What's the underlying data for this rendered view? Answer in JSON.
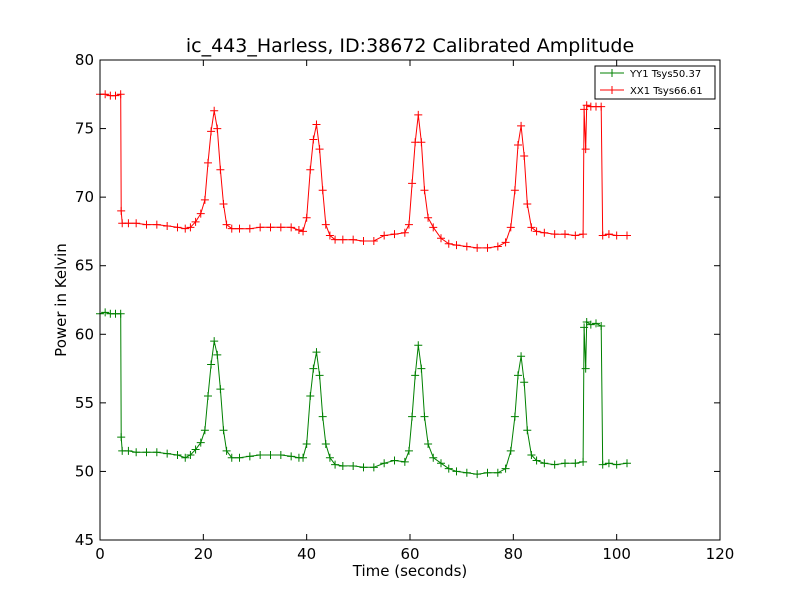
{
  "chart_data": {
    "type": "line",
    "title": "ic_443_Harless, ID:38672 Calibrated Amplitude",
    "xlabel": "Time (seconds)",
    "ylabel": "Power in Kelvin",
    "xlim": [
      0,
      120
    ],
    "ylim": [
      45,
      80
    ],
    "xticks": [
      0,
      20,
      40,
      60,
      80,
      100,
      120
    ],
    "yticks": [
      45,
      50,
      55,
      60,
      65,
      70,
      75,
      80
    ],
    "grid": false,
    "legend_position": "top-right",
    "series": [
      {
        "name": "YY1 Tsys50.37",
        "color": "#008000",
        "marker": "+",
        "points": [
          [
            0.0,
            61.5
          ],
          [
            1.0,
            61.6
          ],
          [
            2.0,
            61.5
          ],
          [
            3.0,
            61.5
          ],
          [
            4.0,
            61.5
          ],
          [
            4.1,
            52.5
          ],
          [
            4.3,
            51.5
          ],
          [
            5.5,
            51.5
          ],
          [
            7.0,
            51.4
          ],
          [
            9.0,
            51.4
          ],
          [
            11.0,
            51.4
          ],
          [
            13.0,
            51.3
          ],
          [
            15.0,
            51.2
          ],
          [
            16.5,
            51.0
          ],
          [
            17.5,
            51.2
          ],
          [
            18.5,
            51.6
          ],
          [
            19.5,
            52.1
          ],
          [
            20.3,
            53.0
          ],
          [
            20.9,
            55.5
          ],
          [
            21.5,
            57.8
          ],
          [
            22.1,
            59.5
          ],
          [
            22.7,
            58.5
          ],
          [
            23.3,
            56.0
          ],
          [
            23.9,
            53.0
          ],
          [
            24.5,
            51.5
          ],
          [
            25.5,
            51.0
          ],
          [
            27.0,
            51.0
          ],
          [
            29.0,
            51.1
          ],
          [
            31.0,
            51.2
          ],
          [
            33.0,
            51.2
          ],
          [
            35.0,
            51.2
          ],
          [
            37.0,
            51.1
          ],
          [
            38.5,
            51.0
          ],
          [
            39.3,
            51.0
          ],
          [
            40.0,
            52.0
          ],
          [
            40.7,
            55.5
          ],
          [
            41.3,
            57.5
          ],
          [
            41.9,
            58.7
          ],
          [
            42.5,
            57.0
          ],
          [
            43.1,
            54.0
          ],
          [
            43.7,
            52.0
          ],
          [
            44.5,
            51.0
          ],
          [
            45.5,
            50.5
          ],
          [
            47.0,
            50.4
          ],
          [
            49.0,
            50.4
          ],
          [
            51.0,
            50.3
          ],
          [
            53.0,
            50.3
          ],
          [
            55.0,
            50.6
          ],
          [
            57.0,
            50.8
          ],
          [
            59.0,
            50.7
          ],
          [
            59.8,
            51.5
          ],
          [
            60.4,
            54.0
          ],
          [
            61.0,
            57.0
          ],
          [
            61.6,
            59.2
          ],
          [
            62.2,
            57.5
          ],
          [
            62.8,
            54.0
          ],
          [
            63.5,
            52.0
          ],
          [
            64.5,
            51.0
          ],
          [
            66.0,
            50.6
          ],
          [
            67.5,
            50.2
          ],
          [
            69.0,
            50.0
          ],
          [
            71.0,
            49.9
          ],
          [
            73.0,
            49.8
          ],
          [
            75.0,
            49.9
          ],
          [
            77.0,
            49.9
          ],
          [
            78.5,
            50.2
          ],
          [
            79.5,
            51.5
          ],
          [
            80.3,
            54.0
          ],
          [
            80.9,
            57.0
          ],
          [
            81.5,
            58.4
          ],
          [
            82.1,
            56.5
          ],
          [
            82.7,
            53.0
          ],
          [
            83.5,
            51.2
          ],
          [
            84.5,
            50.8
          ],
          [
            86.0,
            50.6
          ],
          [
            88.0,
            50.5
          ],
          [
            90.0,
            50.6
          ],
          [
            92.0,
            50.6
          ],
          [
            93.5,
            50.7
          ],
          [
            93.7,
            60.5
          ],
          [
            94.0,
            57.5
          ],
          [
            94.2,
            60.9
          ],
          [
            95.0,
            60.7
          ],
          [
            96.0,
            60.8
          ],
          [
            97.0,
            60.6
          ],
          [
            97.3,
            50.5
          ],
          [
            98.5,
            50.6
          ],
          [
            100.0,
            50.5
          ],
          [
            102.0,
            50.6
          ]
        ]
      },
      {
        "name": "XX1 Tsys66.61",
        "color": "#ff0000",
        "marker": "+",
        "points": [
          [
            0.0,
            77.5
          ],
          [
            1.0,
            77.5
          ],
          [
            2.0,
            77.4
          ],
          [
            3.0,
            77.4
          ],
          [
            4.0,
            77.5
          ],
          [
            4.1,
            69.0
          ],
          [
            4.3,
            68.1
          ],
          [
            5.5,
            68.1
          ],
          [
            7.0,
            68.1
          ],
          [
            9.0,
            68.0
          ],
          [
            11.0,
            68.0
          ],
          [
            13.0,
            67.9
          ],
          [
            15.0,
            67.8
          ],
          [
            16.5,
            67.7
          ],
          [
            17.5,
            67.8
          ],
          [
            18.5,
            68.2
          ],
          [
            19.5,
            68.8
          ],
          [
            20.3,
            69.8
          ],
          [
            20.9,
            72.5
          ],
          [
            21.5,
            74.8
          ],
          [
            22.1,
            76.3
          ],
          [
            22.7,
            75.0
          ],
          [
            23.3,
            72.0
          ],
          [
            23.9,
            69.5
          ],
          [
            24.5,
            68.0
          ],
          [
            25.5,
            67.7
          ],
          [
            27.0,
            67.7
          ],
          [
            29.0,
            67.7
          ],
          [
            31.0,
            67.8
          ],
          [
            33.0,
            67.8
          ],
          [
            35.0,
            67.8
          ],
          [
            37.0,
            67.8
          ],
          [
            38.5,
            67.6
          ],
          [
            39.3,
            67.5
          ],
          [
            40.0,
            68.5
          ],
          [
            40.7,
            72.0
          ],
          [
            41.3,
            74.2
          ],
          [
            41.9,
            75.3
          ],
          [
            42.5,
            73.5
          ],
          [
            43.1,
            70.5
          ],
          [
            43.7,
            68.0
          ],
          [
            44.5,
            67.2
          ],
          [
            45.5,
            66.9
          ],
          [
            47.0,
            66.9
          ],
          [
            49.0,
            66.9
          ],
          [
            51.0,
            66.8
          ],
          [
            53.0,
            66.8
          ],
          [
            55.0,
            67.2
          ],
          [
            57.0,
            67.3
          ],
          [
            59.0,
            67.4
          ],
          [
            59.8,
            68.0
          ],
          [
            60.4,
            71.0
          ],
          [
            61.0,
            74.0
          ],
          [
            61.6,
            76.0
          ],
          [
            62.2,
            74.0
          ],
          [
            62.8,
            70.5
          ],
          [
            63.5,
            68.5
          ],
          [
            64.5,
            67.8
          ],
          [
            66.0,
            67.0
          ],
          [
            67.5,
            66.6
          ],
          [
            69.0,
            66.5
          ],
          [
            71.0,
            66.4
          ],
          [
            73.0,
            66.3
          ],
          [
            75.0,
            66.3
          ],
          [
            77.0,
            66.4
          ],
          [
            78.5,
            66.7
          ],
          [
            79.5,
            67.8
          ],
          [
            80.3,
            70.5
          ],
          [
            80.9,
            73.8
          ],
          [
            81.5,
            75.2
          ],
          [
            82.1,
            73.0
          ],
          [
            82.7,
            69.5
          ],
          [
            83.5,
            67.8
          ],
          [
            84.5,
            67.5
          ],
          [
            86.0,
            67.4
          ],
          [
            88.0,
            67.3
          ],
          [
            90.0,
            67.3
          ],
          [
            92.0,
            67.2
          ],
          [
            93.5,
            67.3
          ],
          [
            93.7,
            76.4
          ],
          [
            94.0,
            73.5
          ],
          [
            94.2,
            76.7
          ],
          [
            95.0,
            76.6
          ],
          [
            96.0,
            76.6
          ],
          [
            97.0,
            76.6
          ],
          [
            97.3,
            67.2
          ],
          [
            98.5,
            67.3
          ],
          [
            100.0,
            67.2
          ],
          [
            102.0,
            67.2
          ]
        ]
      }
    ]
  }
}
